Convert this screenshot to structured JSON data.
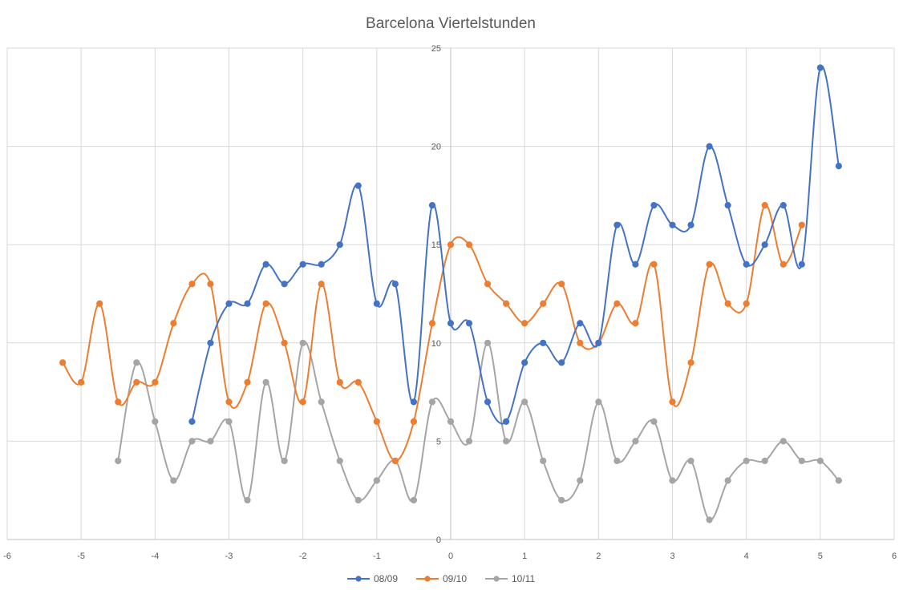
{
  "chart_data": {
    "type": "scatter",
    "title": "Barcelona Viertelstunden",
    "xlabel": "",
    "ylabel": "",
    "xlim": [
      -6,
      6
    ],
    "ylim": [
      0,
      25
    ],
    "x_ticks": [
      -6,
      -5,
      -4,
      -3,
      -2,
      -1,
      0,
      1,
      2,
      3,
      4,
      5,
      6
    ],
    "y_ticks": [
      0,
      5,
      10,
      15,
      20,
      25
    ],
    "grid": true,
    "smooth_lines": true,
    "legend_position": "bottom",
    "series": [
      {
        "name": "08/09",
        "color": "#4472C4",
        "points": [
          [
            -3.5,
            6
          ],
          [
            -3.25,
            10
          ],
          [
            -3,
            12
          ],
          [
            -2.75,
            12
          ],
          [
            -2.5,
            14
          ],
          [
            -2.25,
            13
          ],
          [
            -2,
            14
          ],
          [
            -1.75,
            14
          ],
          [
            -1.5,
            15
          ],
          [
            -1.25,
            18
          ],
          [
            -1,
            12
          ],
          [
            -0.75,
            13
          ],
          [
            -0.5,
            7
          ],
          [
            -0.25,
            17
          ],
          [
            0,
            11
          ],
          [
            0.25,
            11
          ],
          [
            0.5,
            7
          ],
          [
            0.75,
            6
          ],
          [
            1,
            9
          ],
          [
            1.25,
            10
          ],
          [
            1.5,
            9
          ],
          [
            1.75,
            11
          ],
          [
            2,
            10
          ],
          [
            2.25,
            16
          ],
          [
            2.5,
            14
          ],
          [
            2.75,
            17
          ],
          [
            3,
            16
          ],
          [
            3.25,
            16
          ],
          [
            3.5,
            20
          ],
          [
            3.75,
            17
          ],
          [
            4,
            14
          ],
          [
            4.25,
            15
          ],
          [
            4.5,
            17
          ],
          [
            4.75,
            14
          ],
          [
            5,
            24
          ],
          [
            5.25,
            19
          ]
        ]
      },
      {
        "name": "09/10",
        "color": "#ED7D31",
        "points": [
          [
            -5.25,
            9
          ],
          [
            -5,
            8
          ],
          [
            -4.75,
            12
          ],
          [
            -4.5,
            7
          ],
          [
            -4.25,
            8
          ],
          [
            -4,
            8
          ],
          [
            -3.75,
            11
          ],
          [
            -3.5,
            13
          ],
          [
            -3.25,
            13
          ],
          [
            -3,
            7
          ],
          [
            -2.75,
            8
          ],
          [
            -2.5,
            12
          ],
          [
            -2.25,
            10
          ],
          [
            -2,
            7
          ],
          [
            -1.75,
            13
          ],
          [
            -1.5,
            8
          ],
          [
            -1.25,
            8
          ],
          [
            -1,
            6
          ],
          [
            -0.75,
            4
          ],
          [
            -0.5,
            6
          ],
          [
            -0.25,
            11
          ],
          [
            0,
            15
          ],
          [
            0.25,
            15
          ],
          [
            0.5,
            13
          ],
          [
            0.75,
            12
          ],
          [
            1,
            11
          ],
          [
            1.25,
            12
          ],
          [
            1.5,
            13
          ],
          [
            1.75,
            10
          ],
          [
            2,
            10
          ],
          [
            2.25,
            12
          ],
          [
            2.5,
            11
          ],
          [
            2.75,
            14
          ],
          [
            3,
            7
          ],
          [
            3.25,
            9
          ],
          [
            3.5,
            14
          ],
          [
            3.75,
            12
          ],
          [
            4,
            12
          ],
          [
            4.25,
            17
          ],
          [
            4.5,
            14
          ],
          [
            4.75,
            16
          ]
        ]
      },
      {
        "name": "10/11",
        "color": "#A5A5A5",
        "points": [
          [
            -4.5,
            4
          ],
          [
            -4.25,
            9
          ],
          [
            -4,
            6
          ],
          [
            -3.75,
            3
          ],
          [
            -3.5,
            5
          ],
          [
            -3.25,
            5
          ],
          [
            -3,
            6
          ],
          [
            -2.75,
            2
          ],
          [
            -2.5,
            8
          ],
          [
            -2.25,
            4
          ],
          [
            -2,
            10
          ],
          [
            -1.75,
            7
          ],
          [
            -1.5,
            4
          ],
          [
            -1.25,
            2
          ],
          [
            -1,
            3
          ],
          [
            -0.75,
            4
          ],
          [
            -0.5,
            2
          ],
          [
            -0.25,
            7
          ],
          [
            0,
            6
          ],
          [
            0.25,
            5
          ],
          [
            0.5,
            10
          ],
          [
            0.75,
            5
          ],
          [
            1,
            7
          ],
          [
            1.25,
            4
          ],
          [
            1.5,
            2
          ],
          [
            1.75,
            3
          ],
          [
            2,
            7
          ],
          [
            2.25,
            4
          ],
          [
            2.5,
            5
          ],
          [
            2.75,
            6
          ],
          [
            3,
            3
          ],
          [
            3.25,
            4
          ],
          [
            3.5,
            1
          ],
          [
            3.75,
            3
          ],
          [
            4,
            4
          ],
          [
            4.25,
            4
          ],
          [
            4.5,
            5
          ],
          [
            4.75,
            4
          ],
          [
            5,
            4
          ],
          [
            5.25,
            3
          ]
        ]
      }
    ]
  }
}
